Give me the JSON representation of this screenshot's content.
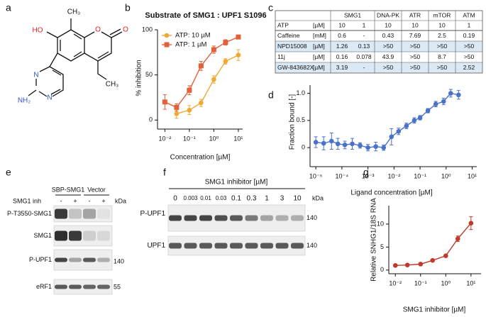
{
  "panel_labels": [
    "a",
    "b",
    "c",
    "d",
    "e",
    "f",
    "g"
  ],
  "structure": {
    "atoms": [
      "HO",
      "CH₃",
      "O",
      "O",
      "N",
      "N",
      "NH₂",
      "CH₃"
    ]
  },
  "chart_data": [
    {
      "type": "line",
      "title": "Substrate of SMG1 : UPF1 S1096",
      "xlabel": "Concentration [µM]",
      "ylabel": "% inhibition",
      "xscale": "log",
      "x": [
        0.01,
        0.03,
        0.1,
        0.3,
        1,
        3,
        10
      ],
      "series": [
        {
          "name": "ATP: 10 µM",
          "color": "#f0a830",
          "marker": "circle",
          "values": [
            null,
            7,
            11,
            19,
            45,
            65,
            72
          ],
          "errors": [
            null,
            5,
            5,
            4,
            4,
            3,
            6
          ]
        },
        {
          "name": "ATP: 1 µM",
          "color": "#e2603a",
          "marker": "square",
          "values": [
            20,
            14,
            33,
            60,
            78,
            86,
            92
          ],
          "errors": [
            8,
            4,
            5,
            5,
            4,
            3,
            2
          ]
        }
      ],
      "xlim": [
        0.005,
        15
      ],
      "ylim": [
        -10,
        100
      ],
      "xticks": [
        {
          "value": 0.01,
          "label": "10⁻²"
        },
        {
          "value": 0.1,
          "label": "10⁻¹"
        },
        {
          "value": 1,
          "label": "10⁰"
        },
        {
          "value": 10,
          "label": "10¹"
        }
      ],
      "yticks": [
        0,
        50,
        100
      ],
      "legend": "upper left"
    },
    {
      "type": "scatter",
      "xlabel": "Ligand concentration [µM]",
      "ylabel": "Fraction bound [-]",
      "xscale": "log",
      "x": [
        1e-05,
        2e-05,
        4e-05,
        7e-05,
        0.00013,
        0.00025,
        0.0005,
        0.001,
        0.002,
        0.004,
        0.008,
        0.015,
        0.03,
        0.06,
        0.1,
        0.2,
        0.4,
        0.8,
        1.5,
        3
      ],
      "series": [
        {
          "color": "#4a72c8",
          "marker": "circle",
          "values": [
            0.1,
            0.08,
            0.12,
            0.07,
            0.05,
            0.07,
            0.04,
            0.0,
            0.02,
            0.0,
            0.2,
            0.3,
            0.4,
            0.5,
            0.55,
            0.68,
            0.8,
            0.85,
            1.0,
            0.97
          ],
          "errors": [
            0.1,
            0.12,
            0.15,
            0.1,
            0.07,
            0.1,
            0.05,
            0.06,
            0.08,
            0.05,
            0.15,
            0.06,
            0.05,
            0.05,
            0.04,
            0.04,
            0.05,
            0.06,
            0.07,
            0.08
          ]
        }
      ],
      "xlim": [
        6e-06,
        15
      ],
      "ylim": [
        -0.35,
        1.15
      ],
      "xticks": [
        {
          "value": 1e-05,
          "label": "10⁻⁵"
        },
        {
          "value": 0.0001,
          "label": "10⁻⁴"
        },
        {
          "value": 0.001,
          "label": "10⁻³"
        },
        {
          "value": 0.01,
          "label": "10⁻²"
        },
        {
          "value": 0.1,
          "label": "10⁻¹"
        },
        {
          "value": 1,
          "label": "10⁰"
        },
        {
          "value": 10,
          "label": "10¹"
        }
      ],
      "yticks": [
        0,
        0.5,
        {
          "value": 1,
          "label": "1.0"
        }
      ]
    },
    {
      "type": "line",
      "xlabel": "SMG1 inhibitor [µM]",
      "ylabel": "Relative SNHG1/18S RNA",
      "xscale": "log",
      "x": [
        0.01,
        0.03,
        0.1,
        0.3,
        1,
        3,
        10
      ],
      "series": [
        {
          "color": "#c0392b",
          "marker": "circle",
          "values": [
            1.0,
            1.1,
            1.3,
            2.1,
            3.1,
            6.8,
            10.2
          ],
          "errors": [
            0.1,
            0.1,
            0.1,
            0.1,
            0.2,
            0.6,
            1.4
          ]
        }
      ],
      "xlim": [
        0.0055,
        25
      ],
      "ylim": [
        -0.8,
        14
      ],
      "xticks": [
        {
          "value": 0.01,
          "label": "10⁻²"
        },
        {
          "value": 0.1,
          "label": "10⁻¹"
        },
        {
          "value": 1,
          "label": "10⁰"
        },
        {
          "value": 10,
          "label": "10¹"
        }
      ],
      "yticks": [
        0,
        5,
        10
      ]
    }
  ],
  "table": {
    "header": [
      "SMG1",
      "DNA-PK",
      "ATR",
      "mTOR",
      "ATM"
    ],
    "subheader": [
      "ATP",
      "[µM]",
      "10",
      "1",
      "10",
      "10",
      "10",
      "1"
    ],
    "rows": [
      [
        "Caffeine",
        "[mM]",
        "0.6",
        "-",
        "0.43",
        "7.69",
        "2.5",
        "0.19"
      ],
      [
        "NPD15008",
        "[µM]",
        "1.26",
        "0.13",
        ">50",
        ">50",
        ">50",
        ">50"
      ],
      [
        "11j",
        "[µM]",
        "0.16",
        "0.078",
        "43.9",
        ">50",
        "8.7",
        ">50"
      ],
      [
        "GW-843682X",
        "[µM]",
        "3.19",
        "-",
        ">50",
        ">50",
        ">50",
        "2.52"
      ]
    ]
  },
  "blot_e": {
    "groups": [
      "SBP-SMG1",
      "Vector"
    ],
    "treatment": "SMG1 inh",
    "lanes": [
      "-",
      "+",
      "-",
      "+"
    ],
    "kda": "kDa",
    "rows": [
      "P-T3550-SMG1",
      "SMG1",
      "P-UPF1",
      "eRF1"
    ],
    "markers": [
      "140",
      "55"
    ]
  },
  "blot_f": {
    "title": "SMG1 inhibitor [µM]",
    "lanes": [
      "0",
      "0.003",
      "0.01",
      "0.03",
      "0.1",
      "0.3",
      "1",
      "3",
      "10"
    ],
    "kda": "kDa",
    "rows": [
      "P-UPF1",
      "UPF1"
    ],
    "markers": [
      "140",
      "140"
    ]
  }
}
